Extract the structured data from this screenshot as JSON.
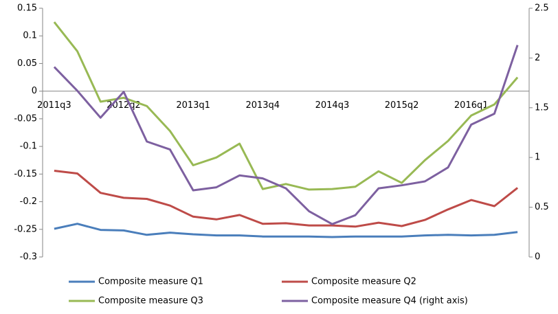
{
  "chart_data": {
    "type": "line",
    "categories": [
      "2011q3",
      null,
      null,
      "2012q2",
      null,
      null,
      "2013q1",
      null,
      null,
      "2013q4",
      null,
      null,
      "2014q3",
      null,
      null,
      "2015q2",
      null,
      null,
      "2016q1",
      null,
      null
    ],
    "ylim": [
      -0.3,
      0.15
    ],
    "yticks": [
      -0.3,
      -0.25,
      -0.2,
      -0.15,
      -0.1,
      -0.05,
      0,
      0.05,
      0.1,
      0.15
    ],
    "y2lim": [
      0,
      2.5
    ],
    "y2ticks": [
      0,
      0.5,
      1,
      1.5,
      2,
      2.5
    ],
    "legend": "bottom",
    "series": [
      {
        "name": "Composite measure Q1",
        "color": "#4a7ebb",
        "values": [
          -0.249,
          -0.24,
          -0.251,
          -0.252,
          -0.26,
          -0.256,
          -0.259,
          -0.261,
          -0.261,
          -0.263,
          -0.263,
          -0.263,
          -0.264,
          -0.263,
          -0.263,
          -0.263,
          -0.261,
          -0.26,
          -0.261,
          -0.26,
          -0.255
        ]
      },
      {
        "name": "Composite measure Q2",
        "color": "#be4b48",
        "values": [
          -0.144,
          -0.149,
          -0.184,
          -0.193,
          -0.195,
          -0.207,
          -0.227,
          -0.232,
          -0.224,
          -0.24,
          -0.239,
          -0.243,
          -0.243,
          -0.245,
          -0.238,
          -0.244,
          -0.233,
          -0.214,
          -0.197,
          -0.208,
          -0.175
        ]
      },
      {
        "name": "Composite measure Q3",
        "color": "#98b954",
        "values": [
          0.125,
          0.072,
          -0.019,
          -0.012,
          -0.027,
          -0.072,
          -0.134,
          -0.12,
          -0.095,
          -0.177,
          -0.168,
          -0.178,
          -0.177,
          -0.173,
          -0.145,
          -0.166,
          -0.125,
          -0.09,
          -0.044,
          -0.024,
          0.025
        ]
      },
      {
        "name": "Composite measure Q4 (right axis)",
        "color": "#7d60a0",
        "axis": "y2",
        "values": [
          1.91,
          1.67,
          1.4,
          1.66,
          1.16,
          1.08,
          0.67,
          0.7,
          0.82,
          0.79,
          0.69,
          0.46,
          0.33,
          0.42,
          0.69,
          0.72,
          0.76,
          0.9,
          1.33,
          1.44,
          2.13
        ]
      }
    ]
  }
}
